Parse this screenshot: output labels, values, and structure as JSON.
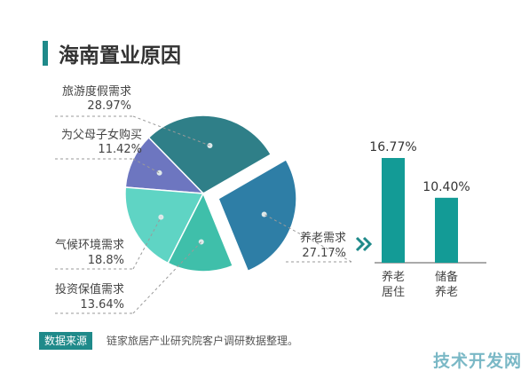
{
  "title": "海南置业原因",
  "colors": {
    "accent": "#1f8a8a",
    "vacation": "#2f7f88",
    "parents": "#6d76c0",
    "climate": "#5fd4c4",
    "investment": "#3fbfaa",
    "retire": "#2e7ea6",
    "bar": "#139b96"
  },
  "chart_data": [
    {
      "type": "pie",
      "slices": [
        {
          "label": "旅游度假需求",
          "value": 28.97,
          "value_text": "28.97%"
        },
        {
          "label": "为父母子女购买",
          "value": 11.42,
          "value_text": "11.42%"
        },
        {
          "label": "气候环境需求",
          "value": 18.8,
          "value_text": "18.8%"
        },
        {
          "label": "投资保值需求",
          "value": 13.64,
          "value_text": "13.64%"
        },
        {
          "label": "养老需求",
          "value": 27.17,
          "value_text": "27.17%",
          "exploded": true
        }
      ]
    },
    {
      "type": "bar",
      "categories": [
        {
          "line1": "养老",
          "line2": "居住"
        },
        {
          "line1": "储备",
          "line2": "养老"
        }
      ],
      "values": [
        16.77,
        10.4
      ],
      "value_labels": [
        "16.77%",
        "10.40%"
      ]
    }
  ],
  "source": {
    "badge": "数据来源",
    "text": "链家旅居产业研究院客户调研数据整理。"
  },
  "watermark": "技术开发网"
}
